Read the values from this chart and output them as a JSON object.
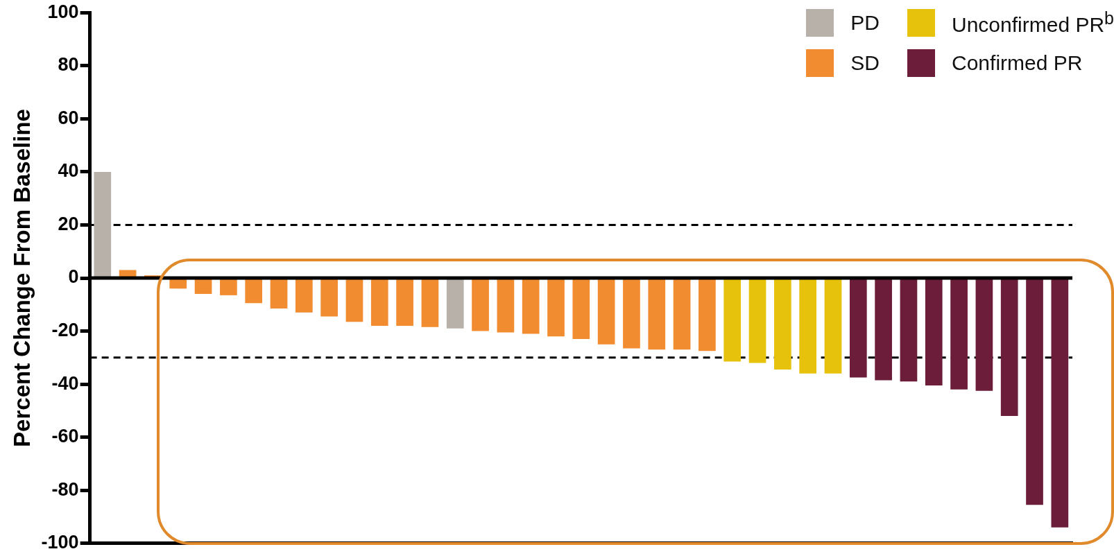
{
  "chart_data": {
    "type": "bar",
    "ylabel": "Percent Change From Baseline",
    "categories": [
      null,
      null,
      null,
      null,
      null,
      null,
      null,
      null,
      null,
      null,
      null,
      null,
      null,
      null,
      null,
      null,
      null,
      null,
      null,
      null,
      null,
      null,
      null,
      null,
      null,
      null,
      null,
      null,
      null,
      null,
      null,
      null,
      null,
      null,
      null,
      null,
      null,
      null,
      null
    ],
    "series": [
      {
        "name": "PD",
        "color": "#b8b1aa",
        "values": [
          40,
          null,
          null,
          null,
          null,
          null,
          null,
          null,
          null,
          null,
          null,
          null,
          null,
          null,
          -19,
          null,
          null,
          null,
          null,
          null,
          null,
          null,
          null,
          null,
          null,
          null,
          null,
          null,
          null,
          null,
          null,
          null,
          null,
          null,
          null,
          null,
          null,
          null,
          null
        ]
      },
      {
        "name": "SD",
        "color": "#f28c30",
        "values": [
          null,
          3,
          1,
          -4,
          -6,
          -6.5,
          -9.5,
          -11.5,
          -13,
          -14.5,
          -16.5,
          -18,
          -18,
          -18.5,
          null,
          -20,
          -20.5,
          -21,
          -22,
          -23,
          -25,
          -26.5,
          -27,
          -27,
          -27.5,
          null,
          null,
          null,
          null,
          null,
          null,
          null,
          null,
          null,
          null,
          null,
          null,
          null,
          null
        ]
      },
      {
        "name": "Unconfirmed PR$^{b}$",
        "color": "#e6c20c",
        "values": [
          null,
          null,
          null,
          null,
          null,
          null,
          null,
          null,
          null,
          null,
          null,
          null,
          null,
          null,
          null,
          null,
          null,
          null,
          null,
          null,
          null,
          null,
          null,
          null,
          null,
          -31.5,
          -32,
          -34.5,
          -36,
          -36,
          null,
          null,
          null,
          null,
          null,
          null,
          null,
          null,
          null
        ]
      },
      {
        "name": "Confirmed PR",
        "color": "#6b1d3a",
        "values": [
          null,
          null,
          null,
          null,
          null,
          null,
          null,
          null,
          null,
          null,
          null,
          null,
          null,
          null,
          null,
          null,
          null,
          null,
          null,
          null,
          null,
          null,
          null,
          null,
          null,
          null,
          null,
          null,
          null,
          null,
          -37.5,
          -38.5,
          -39,
          -40.5,
          -42,
          -42.5,
          -52,
          -85.5,
          -94
        ]
      }
    ],
    "ylim": [
      -100,
      100
    ],
    "yticks": [
      -100,
      -80,
      -60,
      -40,
      -20,
      0,
      20,
      40,
      60,
      80,
      100
    ],
    "ref_lines": [
      {
        "axis": "y",
        "value": 20,
        "line_style": "dashed"
      },
      {
        "axis": "y",
        "value": -30,
        "line_style": "dashed"
      }
    ],
    "legend": "top right",
    "tick_labels": "y"
  }
}
